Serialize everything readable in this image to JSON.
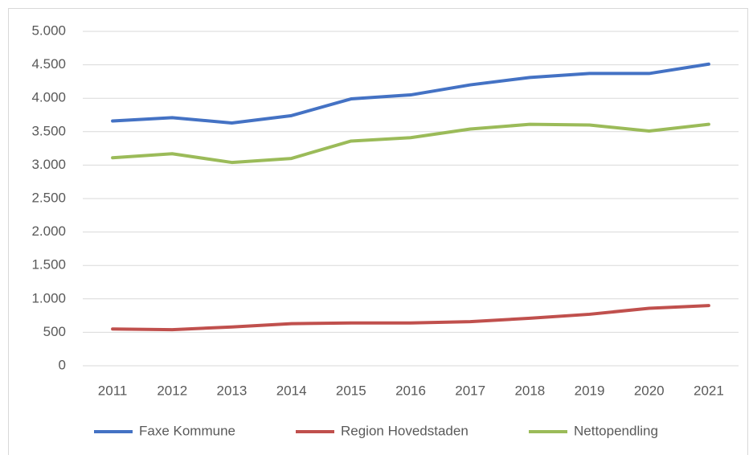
{
  "chart_data": {
    "type": "line",
    "categories": [
      "2011",
      "2012",
      "2013",
      "2014",
      "2015",
      "2016",
      "2017",
      "2018",
      "2019",
      "2020",
      "2021"
    ],
    "series": [
      {
        "name": "Faxe Kommune",
        "color": "#4472c4",
        "values": [
          3660,
          3710,
          3630,
          3740,
          3990,
          4050,
          4200,
          4310,
          4370,
          4370,
          4510
        ]
      },
      {
        "name": "Region Hovedstaden",
        "color": "#c0504d",
        "values": [
          550,
          540,
          580,
          630,
          640,
          640,
          660,
          710,
          770,
          860,
          900
        ]
      },
      {
        "name": "Nettopendling",
        "color": "#9bbb59",
        "values": [
          3110,
          3170,
          3040,
          3100,
          3360,
          3410,
          3540,
          3610,
          3600,
          3510,
          3610
        ]
      }
    ],
    "ylim": [
      0,
      5000
    ],
    "yticks": [
      0,
      500,
      {
        "value": 1000,
        "label": "1.000"
      },
      {
        "value": 1500,
        "label": "1.500"
      },
      {
        "value": 2000,
        "label": "2.000"
      },
      {
        "value": 2500,
        "label": "2.500"
      },
      {
        "value": 3000,
        "label": "3.000"
      },
      {
        "value": 3500,
        "label": "3.500"
      },
      {
        "value": 4000,
        "label": "4.000"
      },
      {
        "value": 4500,
        "label": "4.500"
      },
      {
        "value": 5000,
        "label": "5.000"
      }
    ],
    "grid": true,
    "legend": "bottom"
  }
}
